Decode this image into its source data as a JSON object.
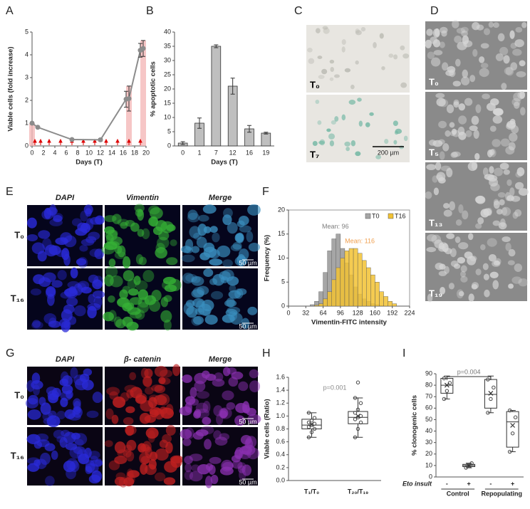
{
  "chart_data": [
    {
      "type": "line",
      "label": "A",
      "ylabel": "Viable cells (fold increase)",
      "xlabel": "Days (T)",
      "x": [
        0,
        1,
        7,
        12,
        16.5,
        17,
        19,
        19.5
      ],
      "values": [
        1.0,
        0.82,
        0.28,
        0.27,
        2.05,
        2.08,
        4.2,
        4.28
      ],
      "errors": [
        0,
        0.03,
        0.04,
        0.06,
        0.35,
        0.55,
        0.3,
        0.35
      ],
      "color": "#8c8c8c",
      "highlight_x": [
        0,
        17,
        19.5
      ],
      "arrow_x": [
        0.5,
        1.5,
        3,
        5,
        7,
        9,
        11,
        13,
        15,
        17,
        19
      ],
      "xlim": [
        0,
        20
      ],
      "xticks": [
        0,
        2,
        4,
        6,
        8,
        10,
        12,
        14,
        16,
        18,
        20
      ],
      "ylim": [
        0,
        5
      ],
      "yticks": [
        0,
        1,
        2,
        3,
        4,
        5
      ]
    },
    {
      "type": "bar",
      "label": "B",
      "ylabel": "% apoptotic cells",
      "xlabel": "Days (T)",
      "categories": [
        "0",
        "1",
        "7",
        "12",
        "16",
        "19"
      ],
      "values": [
        1,
        8,
        35,
        21,
        6,
        4.5
      ],
      "errors": [
        0.5,
        1.8,
        0.5,
        2.8,
        1.2,
        0.3
      ],
      "color": "#bfbfbf",
      "ylim": [
        0,
        40
      ],
      "yticks": [
        0,
        5,
        10,
        15,
        20,
        25,
        30,
        35,
        40
      ]
    },
    {
      "type": "histogram",
      "label": "F",
      "ylabel": "Frequency (%)",
      "xlabel": "Vimentin-FITC intensity",
      "bins": [
        40,
        48,
        56,
        64,
        72,
        80,
        88,
        96,
        104,
        112,
        120,
        128,
        136,
        144,
        152,
        160,
        168,
        176,
        184,
        192,
        200
      ],
      "series": [
        {
          "name": "T0",
          "color": "#a6a6a6",
          "annotation": "Mean: 96",
          "annotation_color": "#7f7f7f",
          "values": [
            0.3,
            1,
            3,
            7,
            11.5,
            14,
            15,
            12,
            9,
            6.5,
            4,
            2.5,
            1.5,
            1,
            0.5,
            0.3,
            0.1,
            0,
            0,
            0
          ]
        },
        {
          "name": "T16",
          "color": "#f2c232",
          "annotation": "Mean: 116",
          "annotation_color": "#f0a050",
          "values": [
            0,
            0.2,
            0.5,
            1.5,
            3,
            5.5,
            8,
            10,
            11.5,
            12,
            12,
            11,
            9.5,
            8,
            6.5,
            5,
            3,
            2,
            1,
            0.5
          ]
        }
      ],
      "xlim": [
        0,
        224
      ],
      "xticks": [
        0,
        32,
        64,
        96,
        128,
        160,
        192,
        224
      ],
      "ylim": [
        0,
        20
      ],
      "yticks": [
        0,
        5,
        10,
        15,
        20
      ]
    },
    {
      "type": "box",
      "label": "H",
      "ylabel": "Viable cells (Ratio)",
      "p_value": "p=0.001",
      "categories": [
        "T₁/T₀",
        "T₂₀/T₁₉"
      ],
      "boxes": [
        {
          "min": 0.67,
          "q1": 0.8,
          "median": 0.86,
          "q3": 0.95,
          "max": 1.05,
          "mean": 0.87,
          "points": [
            0.67,
            0.75,
            0.8,
            0.83,
            0.86,
            0.88,
            0.9,
            0.93,
            0.97,
            1.05
          ]
        },
        {
          "min": 0.67,
          "q1": 0.88,
          "median": 0.98,
          "q3": 1.07,
          "max": 1.28,
          "mean": 1.0,
          "points": [
            0.67,
            0.8,
            0.9,
            0.95,
            0.98,
            1.0,
            1.05,
            1.1,
            1.2,
            1.28,
            1.52
          ]
        }
      ],
      "ylim": [
        0,
        1.6
      ],
      "yticks": [
        {
          "value": 0,
          "label": "0.0"
        },
        0.2,
        0.4,
        0.6,
        0.8,
        {
          "value": 1,
          "label": "1.0"
        },
        1.2,
        1.4,
        1.6
      ]
    },
    {
      "type": "box",
      "label": "I",
      "ylabel": "% clonogenic cells",
      "p_value": "p=0.004",
      "row_label": "Eto insult",
      "categories": [
        "-",
        "+",
        "-",
        "+"
      ],
      "groups": [
        "Control",
        "Repopulating"
      ],
      "boxes": [
        {
          "min": 68,
          "q1": 73,
          "median": 80,
          "q3": 86,
          "max": 88,
          "mean": 80,
          "points": [
            68,
            75,
            82,
            86
          ]
        },
        {
          "min": 8,
          "q1": 9,
          "median": 10,
          "q3": 11,
          "max": 12,
          "mean": 10,
          "points": [
            8,
            10,
            12
          ]
        },
        {
          "min": 56,
          "q1": 60,
          "median": 72,
          "q3": 85,
          "max": 88,
          "mean": 73,
          "points": [
            56,
            68,
            78,
            85
          ]
        },
        {
          "min": 22,
          "q1": 26,
          "median": 48,
          "q3": 57,
          "max": 58,
          "mean": 45,
          "points": [
            22,
            38,
            52,
            58
          ]
        }
      ],
      "ylim": [
        0,
        90
      ],
      "yticks": [
        0,
        10,
        20,
        30,
        40,
        50,
        60,
        70,
        80,
        90
      ]
    }
  ],
  "images": [
    {
      "label": "C",
      "rows": [
        "T₀",
        "T₇"
      ],
      "scale_bar": "200 µm"
    },
    {
      "label": "D",
      "rows": [
        "T₀",
        "T₅",
        "T₁₃",
        "T₁₉"
      ]
    },
    {
      "label": "E",
      "columns": [
        "DAPI",
        "Vimentin",
        "Merge"
      ],
      "rows": [
        "T₀",
        "T₁₆"
      ],
      "scale_bar": "50 µm"
    },
    {
      "label": "G",
      "columns": [
        "DAPI",
        "β- catenin",
        "Merge"
      ],
      "rows": [
        "T₀",
        "T₁₆"
      ],
      "scale_bar": "50 µm"
    }
  ]
}
